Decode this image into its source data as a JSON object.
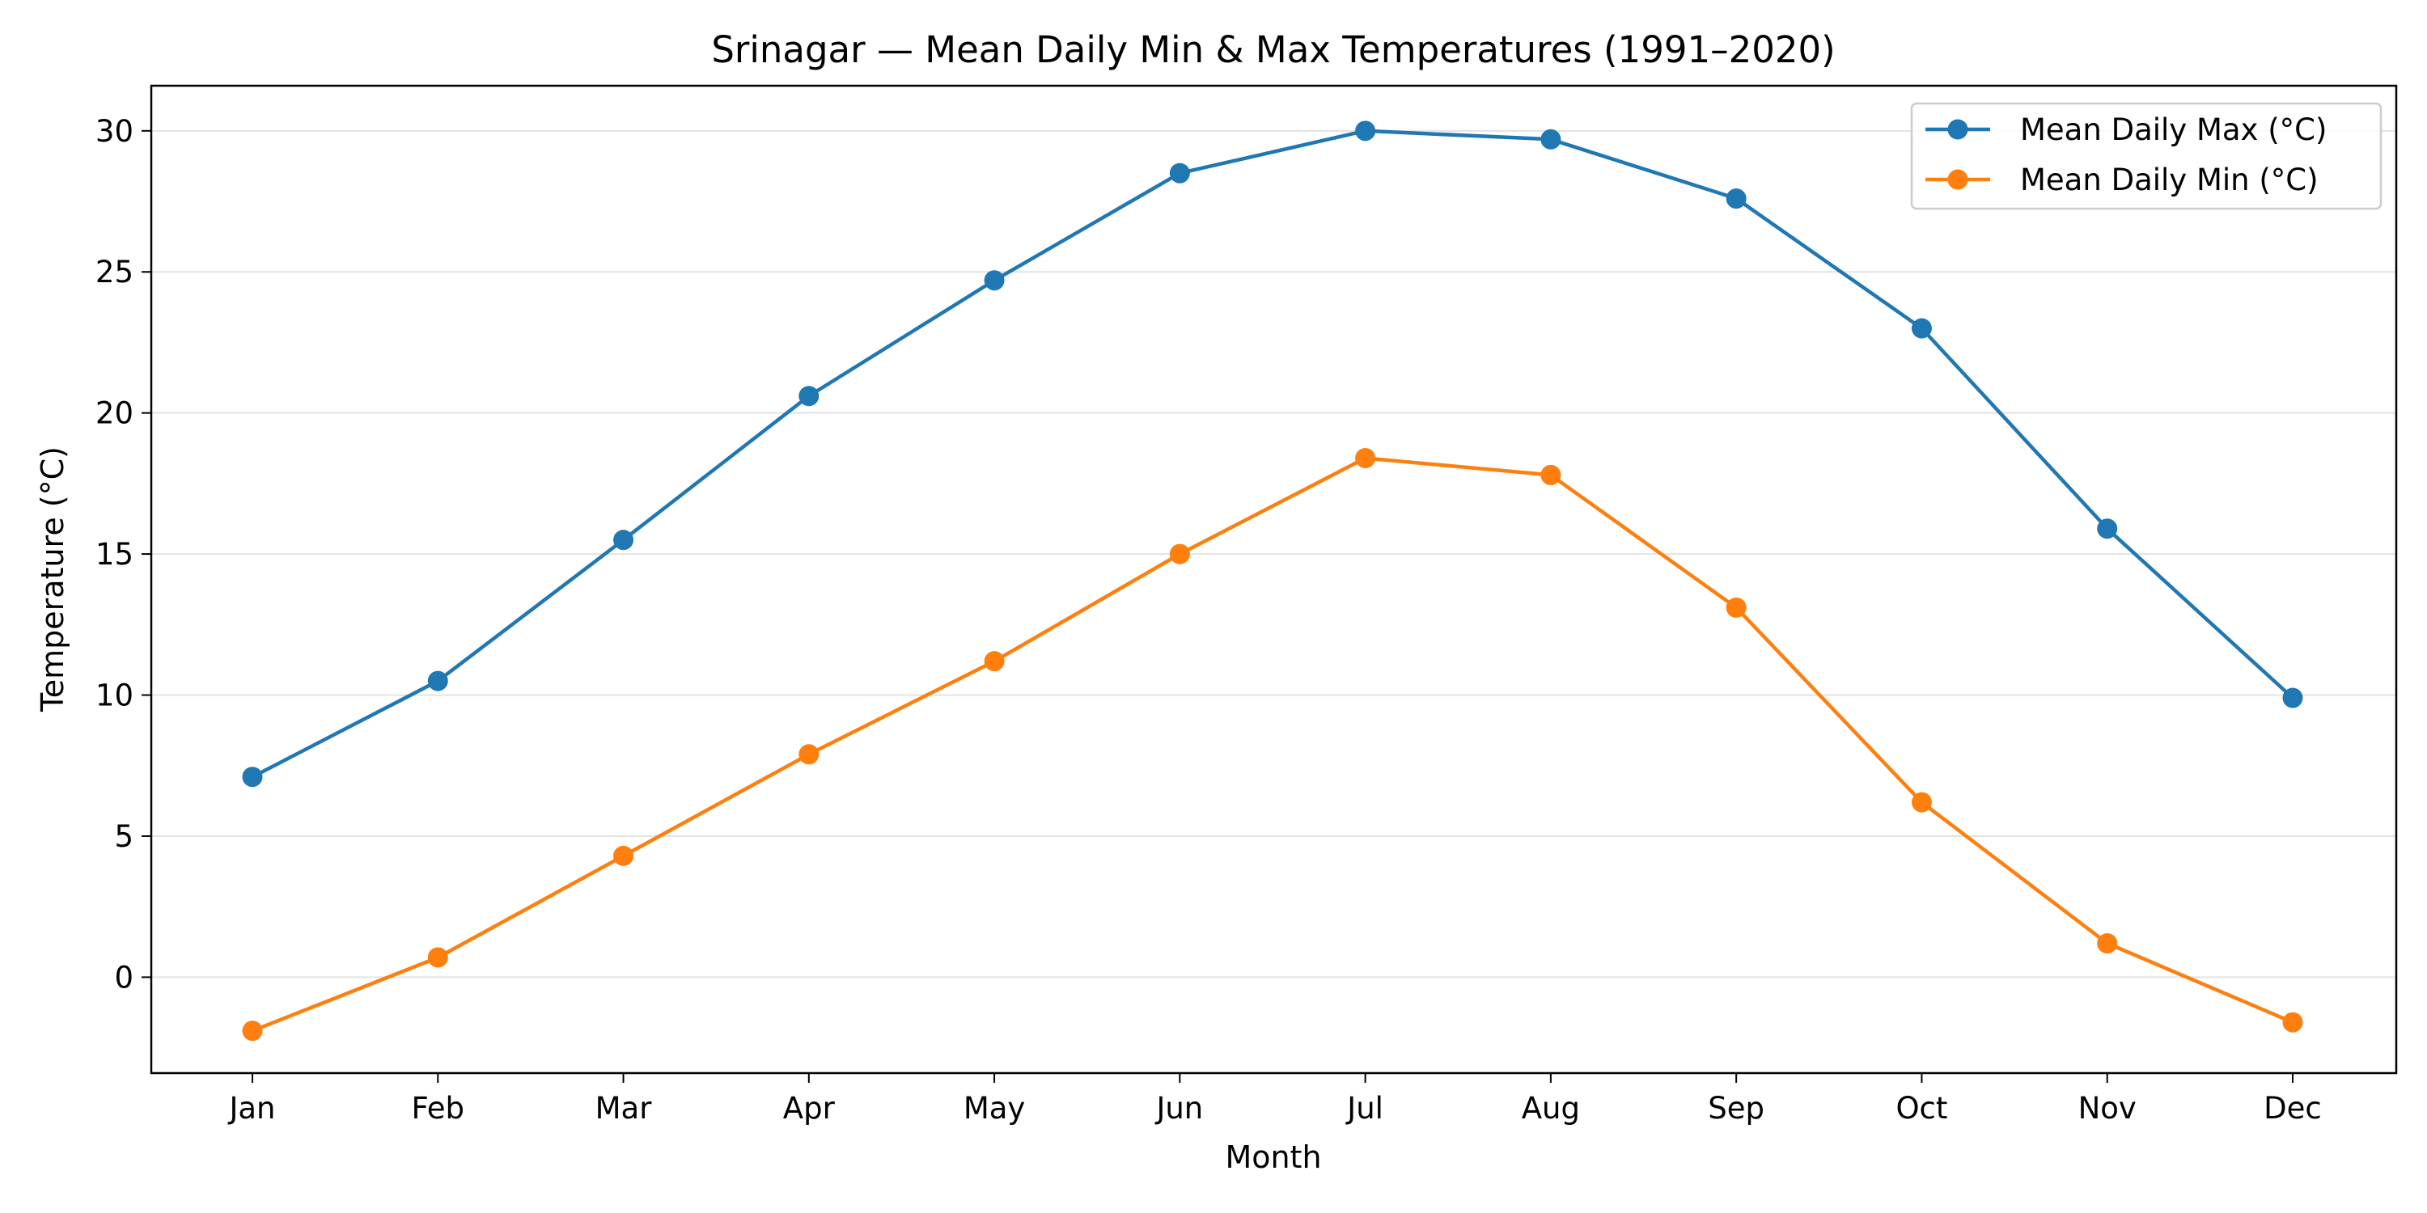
{
  "chart_data": {
    "type": "line",
    "title": "Srinagar — Mean Daily Min & Max Temperatures (1991–2020)",
    "xlabel": "Month",
    "ylabel": "Temperature (°C)",
    "categories": [
      "Jan",
      "Feb",
      "Mar",
      "Apr",
      "May",
      "Jun",
      "Jul",
      "Aug",
      "Sep",
      "Oct",
      "Nov",
      "Dec"
    ],
    "ylim": [
      -3.4,
      31.6
    ],
    "yticks": [
      0,
      5,
      10,
      15,
      20,
      25,
      30
    ],
    "grid": "horizontal",
    "legend_position": "top-right",
    "series": [
      {
        "name": "Mean Daily Max (°C)",
        "color": "#1f77b4",
        "marker": "circle",
        "values": [
          7.1,
          10.5,
          15.5,
          20.6,
          24.7,
          28.5,
          30.0,
          29.7,
          27.6,
          23.0,
          15.9,
          9.9
        ]
      },
      {
        "name": "Mean Daily Min (°C)",
        "color": "#ff7f0e",
        "marker": "circle",
        "values": [
          -1.9,
          0.7,
          4.3,
          7.9,
          11.2,
          15.0,
          18.4,
          17.8,
          13.1,
          6.2,
          1.2,
          -1.6
        ]
      }
    ]
  }
}
